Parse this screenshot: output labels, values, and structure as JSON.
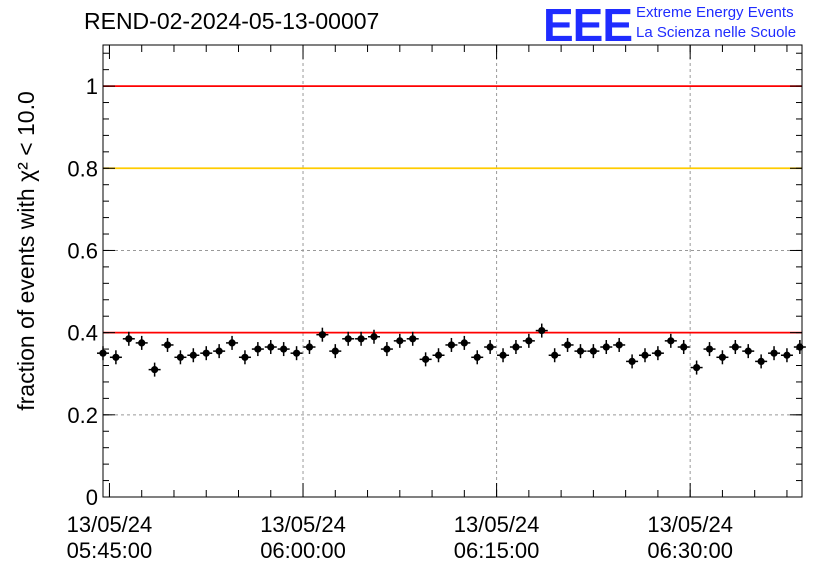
{
  "title": "REND-02-2024-05-13-00007",
  "logo": {
    "mark": "EEE",
    "line1": "Extreme Energy Events",
    "line2": "La Scienza nelle Scuole",
    "color": "#1f2cff"
  },
  "chart_data": {
    "type": "scatter",
    "title": "REND-02-2024-05-13-00007",
    "ylabel": "fraction of events with χ² < 10.0",
    "xlabel": "",
    "ylim": [
      0,
      1.1
    ],
    "xlim": [
      "13/05/24 05:44:30",
      "13/05/24 06:38:40"
    ],
    "grid": true,
    "y_ticks": [
      "0",
      "0.2",
      "0.4",
      "0.6",
      "0.8",
      "1"
    ],
    "x_ticks": [
      {
        "date": "13/05/24",
        "time": "05:45:00"
      },
      {
        "date": "13/05/24",
        "time": "06:00:00"
      },
      {
        "date": "13/05/24",
        "time": "06:15:00"
      },
      {
        "date": "13/05/24",
        "time": "06:30:00"
      }
    ],
    "reference_lines": [
      {
        "y": 1.0,
        "color": "#ff0000"
      },
      {
        "y": 0.8,
        "color": "#ffcc00"
      },
      {
        "y": 0.4,
        "color": "#ff0000"
      }
    ],
    "series": [
      {
        "marker_color": "#000000",
        "x": [
          "05:44:30",
          "05:45:30",
          "05:46:30",
          "05:47:30",
          "05:48:30",
          "05:49:30",
          "05:50:30",
          "05:51:30",
          "05:52:30",
          "05:53:30",
          "05:54:30",
          "05:55:30",
          "05:56:30",
          "05:57:30",
          "05:58:30",
          "05:59:30",
          "06:00:30",
          "06:01:30",
          "06:02:30",
          "06:03:30",
          "06:04:30",
          "06:05:30",
          "06:06:30",
          "06:07:30",
          "06:08:30",
          "06:09:30",
          "06:10:30",
          "06:11:30",
          "06:12:30",
          "06:13:30",
          "06:14:30",
          "06:15:30",
          "06:16:30",
          "06:17:30",
          "06:18:30",
          "06:19:30",
          "06:20:30",
          "06:21:30",
          "06:22:30",
          "06:23:30",
          "06:24:30",
          "06:25:30",
          "06:26:30",
          "06:27:30",
          "06:28:30",
          "06:29:30",
          "06:30:30",
          "06:31:30",
          "06:32:30",
          "06:33:30",
          "06:34:30",
          "06:35:30",
          "06:36:30",
          "06:37:30",
          "06:38:30"
        ],
        "y": [
          0.35,
          0.34,
          0.385,
          0.375,
          0.31,
          0.37,
          0.34,
          0.345,
          0.35,
          0.355,
          0.375,
          0.34,
          0.36,
          0.365,
          0.36,
          0.35,
          0.365,
          0.395,
          0.355,
          0.385,
          0.385,
          0.39,
          0.36,
          0.38,
          0.385,
          0.335,
          0.345,
          0.37,
          0.375,
          0.34,
          0.365,
          0.345,
          0.365,
          0.38,
          0.405,
          0.345,
          0.37,
          0.355,
          0.355,
          0.365,
          0.37,
          0.33,
          0.345,
          0.35,
          0.38,
          0.365,
          0.315,
          0.36,
          0.34,
          0.365,
          0.355,
          0.33,
          0.35,
          0.345,
          0.365
        ]
      }
    ]
  }
}
